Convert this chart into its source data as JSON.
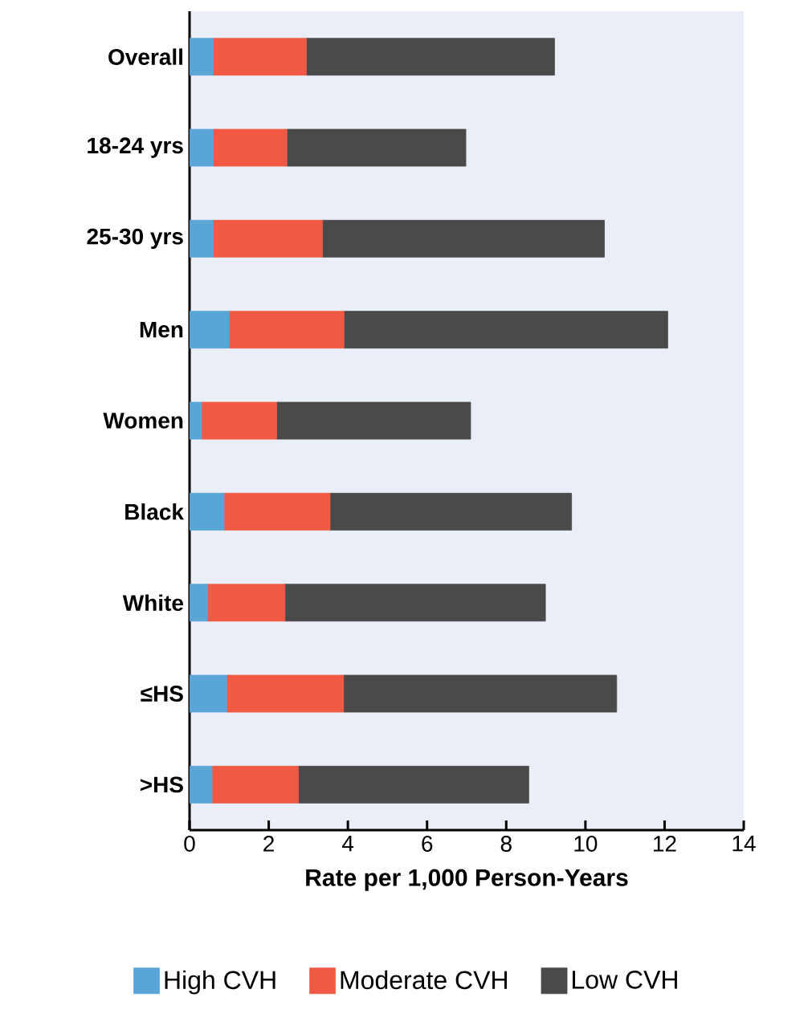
{
  "chart_data": {
    "type": "bar",
    "orientation": "horizontal",
    "stacked": true,
    "xlabel": "Rate per 1,000 Person-Years",
    "categories": [
      "Overall",
      "18-24 yrs",
      "25-30 yrs",
      "Men",
      "Women",
      "Black",
      "White",
      "≤HS",
      ">HS"
    ],
    "series": [
      {
        "name": "High CVH",
        "color": "#5aa5d8",
        "values": [
          0.6,
          0.6,
          0.6,
          1.0,
          0.3,
          0.87,
          0.45,
          0.94,
          0.57
        ]
      },
      {
        "name": "Moderate CVH",
        "color": "#f05a45",
        "values": [
          2.35,
          1.86,
          2.76,
          2.9,
          1.9,
          2.68,
          1.96,
          2.95,
          2.18
        ]
      },
      {
        "name": "Low CVH",
        "color": "#4a4a4a",
        "values": [
          6.27,
          4.52,
          7.12,
          8.18,
          4.9,
          6.1,
          6.58,
          6.9,
          5.82
        ]
      }
    ],
    "xlim": [
      0,
      14
    ],
    "xticks": [
      0,
      2,
      4,
      6,
      8,
      10,
      12,
      14
    ],
    "grid": false,
    "legend": "bottom"
  }
}
